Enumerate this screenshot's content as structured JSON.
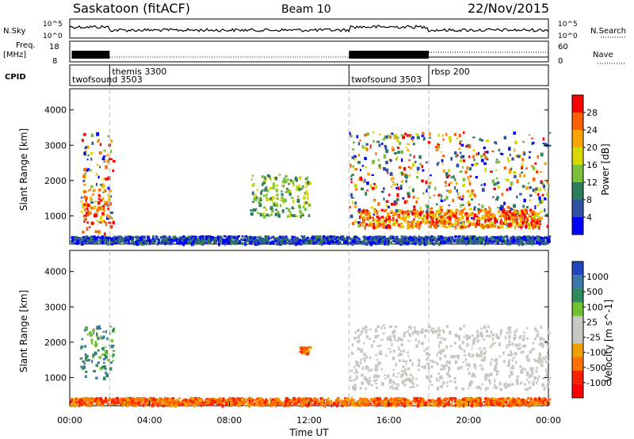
{
  "header": {
    "station": "Saskatoon (fitACF)",
    "beam": "Beam 10",
    "date": "22/Nov/2015"
  },
  "colors": {
    "power_scale": [
      "#0000ff",
      "#3050a0",
      "#2e7d5a",
      "#7cbf3a",
      "#d8d800",
      "#ffa500",
      "#ff6000",
      "#ff0000"
    ],
    "velocity_scale": [
      "#2046c0",
      "#3a78a8",
      "#2e8a5a",
      "#70c030",
      "#c8c8c0",
      "#c8c8c0",
      "#f0a000",
      "#ff7000",
      "#ff2000",
      "#ff0000"
    ],
    "grey_scatter": "#c8c8c0"
  },
  "timeline": {
    "nsky_label": "N.Sky",
    "nsky_ticks": [
      "10^5",
      "10^0"
    ],
    "nsearch_label": "N.Search",
    "nsearch_ticks": [
      "10^5",
      "10^0"
    ],
    "freq_label": "Freq.",
    "freq_unit": "[MHz]",
    "freq_ticks": [
      "18",
      "8"
    ],
    "nave_label": "Nave",
    "nave_ticks": [
      "60",
      "0"
    ],
    "cpid_label": "CPID",
    "cpid_entries": [
      {
        "name": "twofsound",
        "id": "3503",
        "t": 0.0
      },
      {
        "name": "themis",
        "id": "3300",
        "t": 2.0
      },
      {
        "name": "twofsound",
        "id": "3503",
        "t": 14.0
      },
      {
        "name": "rbsp",
        "id": "200",
        "t": 18.0
      }
    ]
  },
  "chart_data": [
    {
      "type": "heatmap",
      "title": "Power",
      "ylabel": "Slant Range [km]",
      "ylim": [
        200,
        4600
      ],
      "xlim": [
        0,
        24
      ],
      "colorbar_label": "Power [dB]",
      "colorbar_ticks": [
        "4",
        "8",
        "12",
        "16",
        "20",
        "24",
        "28"
      ],
      "colorbar_range": [
        0,
        32
      ],
      "regions": [
        {
          "t": [
            0.5,
            2.2
          ],
          "r": [
            500,
            3400
          ],
          "level": "mixed",
          "value_db": [
            4,
            28
          ]
        },
        {
          "t": [
            0.6,
            2.0
          ],
          "r": [
            800,
            1800
          ],
          "level": "high",
          "value_db": [
            16,
            28
          ]
        },
        {
          "t": [
            0.0,
            24.0
          ],
          "r": [
            250,
            450
          ],
          "level": "low",
          "value_db": [
            4,
            12
          ]
        },
        {
          "t": [
            14.0,
            24.0
          ],
          "r": [
            700,
            3400
          ],
          "level": "mixed",
          "value_db": [
            4,
            28
          ]
        },
        {
          "t": [
            14.5,
            23.5
          ],
          "r": [
            700,
            1200
          ],
          "level": "high",
          "value_db": [
            20,
            28
          ]
        },
        {
          "t": [
            9.0,
            12.0
          ],
          "r": [
            1000,
            2200
          ],
          "level": "sparse",
          "value_db": [
            8,
            20
          ]
        }
      ]
    },
    {
      "type": "heatmap",
      "title": "Velocity",
      "ylabel": "Slant Range [km]",
      "xlabel": "Time UT",
      "ylim": [
        200,
        4600
      ],
      "xlim": [
        0,
        24
      ],
      "colorbar_label": "Velocity [m s^-1]",
      "colorbar_ticks": [
        "1000",
        "500",
        "100",
        "25",
        "-25",
        "-100",
        "-500",
        "-1000"
      ],
      "x_ticks": [
        "00:00",
        "04:00",
        "08:00",
        "12:00",
        "16:00",
        "20:00",
        "00:00"
      ],
      "x_tick_values": [
        0,
        4,
        8,
        12,
        16,
        20,
        24
      ],
      "y_ticks": [
        "1000",
        "2000",
        "3000",
        "4000"
      ],
      "y_tick_values": [
        1000,
        2000,
        3000,
        4000
      ],
      "regions": [
        {
          "t": [
            0.5,
            2.2
          ],
          "r": [
            1000,
            2500
          ],
          "level": "positive",
          "value_ms": [
            100,
            500
          ]
        },
        {
          "t": [
            0.0,
            24.0
          ],
          "r": [
            250,
            450
          ],
          "level": "negative",
          "value_ms": [
            -25,
            -100
          ]
        },
        {
          "t": [
            14.0,
            24.0
          ],
          "r": [
            700,
            2500
          ],
          "level": "ground",
          "value_ms": [
            -25,
            25
          ]
        },
        {
          "t": [
            11.5,
            12.0
          ],
          "r": [
            1700,
            1900
          ],
          "level": "negative",
          "value_ms": [
            -500,
            -500
          ]
        }
      ]
    }
  ]
}
